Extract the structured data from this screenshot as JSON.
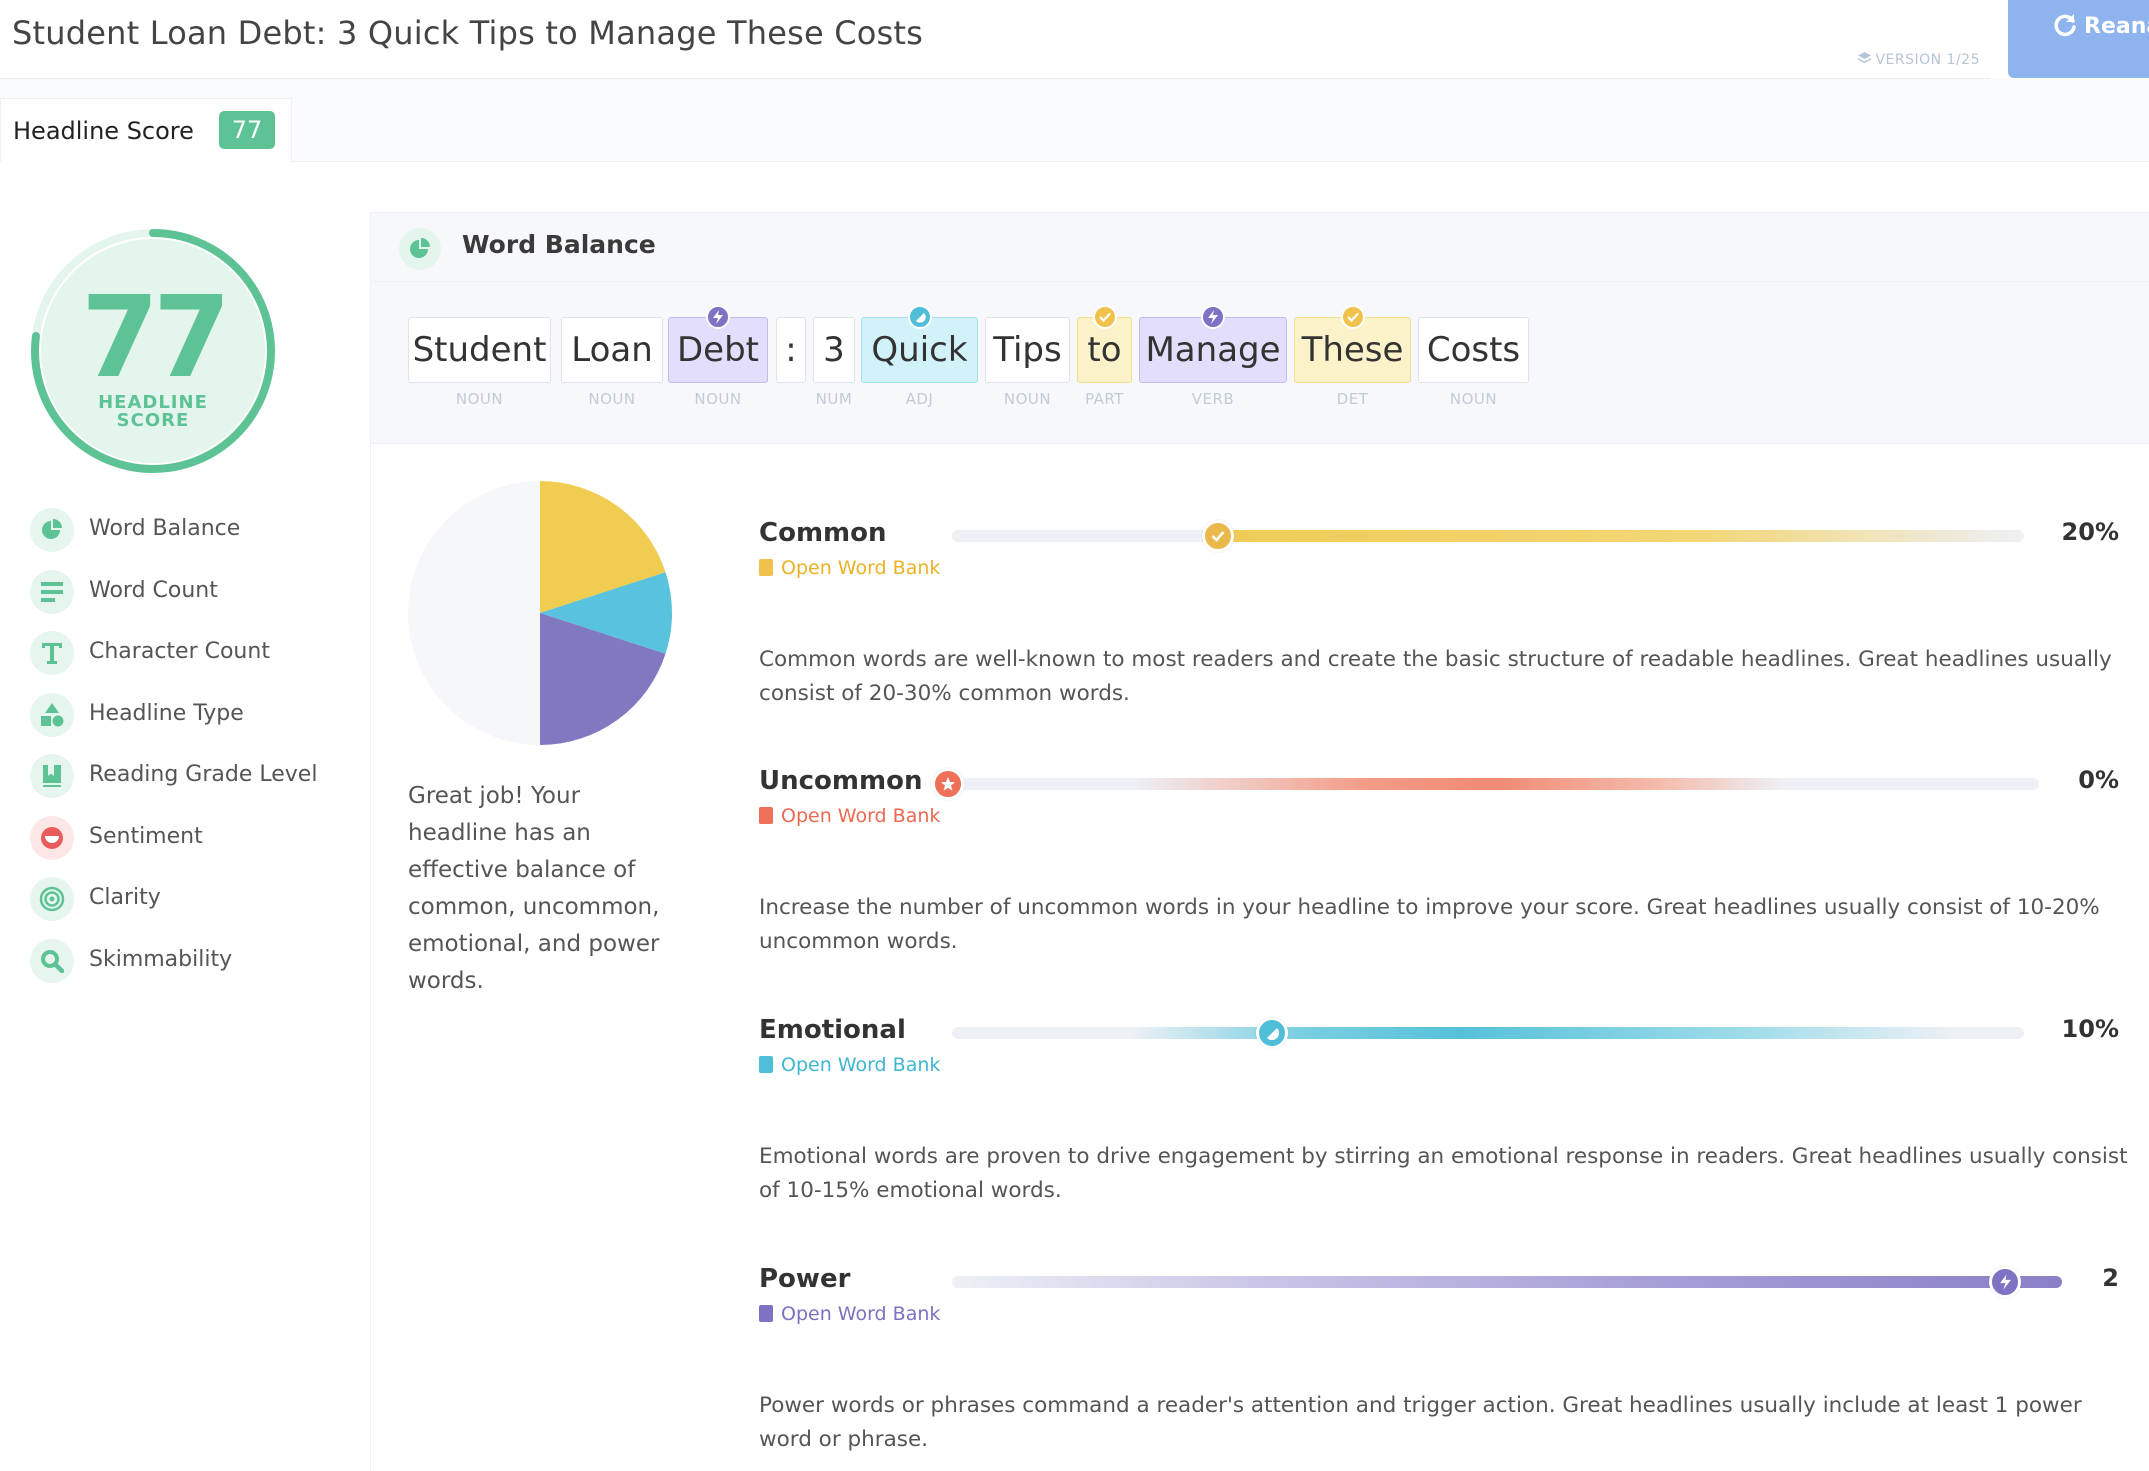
{
  "header": {
    "headline": "Student Loan Debt: 3 Quick Tips to Manage These Costs",
    "version": "VERSION 1/25",
    "reanalyze_label": "Reana"
  },
  "tabs": [
    {
      "label": "Headline Score",
      "badge": "77"
    }
  ],
  "score": {
    "value": "77",
    "label_line1": "HEADLINE",
    "label_line2": "SCORE",
    "progress": 0.77
  },
  "sidebar": {
    "items": [
      {
        "label": "Word Balance",
        "icon": "pie-chart-icon"
      },
      {
        "label": "Word Count",
        "icon": "lines-icon"
      },
      {
        "label": "Character Count",
        "icon": "letter-t-icon"
      },
      {
        "label": "Headline Type",
        "icon": "shapes-icon"
      },
      {
        "label": "Reading Grade Level",
        "icon": "book-icon"
      },
      {
        "label": "Sentiment",
        "icon": "smile-icon"
      },
      {
        "label": "Clarity",
        "icon": "target-icon"
      },
      {
        "label": "Skimmability",
        "icon": "magnifier-icon"
      }
    ]
  },
  "panel": {
    "title": "Word Balance",
    "words": [
      {
        "text": "Student",
        "pos": "NOUN",
        "type": "plain"
      },
      {
        "text": "Loan",
        "pos": "NOUN",
        "type": "plain"
      },
      {
        "text": "Debt",
        "pos": "NOUN",
        "type": "power"
      },
      {
        "text": ":",
        "pos": "",
        "type": "plain"
      },
      {
        "text": "3",
        "pos": "NUM",
        "type": "plain"
      },
      {
        "text": "Quick",
        "pos": "ADJ",
        "type": "emotional"
      },
      {
        "text": "Tips",
        "pos": "NOUN",
        "type": "plain"
      },
      {
        "text": "to",
        "pos": "PART",
        "type": "common"
      },
      {
        "text": "Manage",
        "pos": "VERB",
        "type": "power"
      },
      {
        "text": "These",
        "pos": "DET",
        "type": "common"
      },
      {
        "text": "Costs",
        "pos": "NOUN",
        "type": "plain"
      }
    ],
    "summary": "Great job! Your headline has an effective balance of common, uncommon, emotional, and power words.",
    "pie": [
      {
        "name": "common",
        "fraction": 0.2,
        "color": "#f0cd50"
      },
      {
        "name": "emotional",
        "fraction": 0.1,
        "color": "#59c3dd"
      },
      {
        "name": "power",
        "fraction": 0.2,
        "color": "#8178c2"
      },
      {
        "name": "other",
        "fraction": 0.5,
        "color": "#f6f7fa"
      }
    ],
    "metrics": [
      {
        "name": "Common",
        "bank": "Open Word Bank",
        "value": "20%",
        "level": 0.2,
        "color": "#f0c24c",
        "description": "Common words are well-known to most readers and create the basic structure of readable headlines. Great headlines usually consist of 20-30% common words."
      },
      {
        "name": "Uncommon",
        "bank": "Open Word Bank",
        "value": "0%",
        "level": 0,
        "color": "#ee7059",
        "description": "Increase the number of uncommon words in your headline to improve your score. Great headlines usually consist of 10-20% uncommon words."
      },
      {
        "name": "Emotional",
        "bank": "Open Word Bank",
        "value": "10%",
        "level": 0.1,
        "color": "#4fbfd8",
        "description": "Emotional words are proven to drive engagement by stirring an emotional response in readers. Great headlines usually consist of 10-15% emotional words."
      },
      {
        "name": "Power",
        "bank": "Open Word Bank",
        "value": "2",
        "level": 2,
        "color": "#7d73c2",
        "description": "Power words or phrases command a reader's attention and trigger action. Great headlines usually include at least 1 power word or phrase."
      }
    ]
  }
}
